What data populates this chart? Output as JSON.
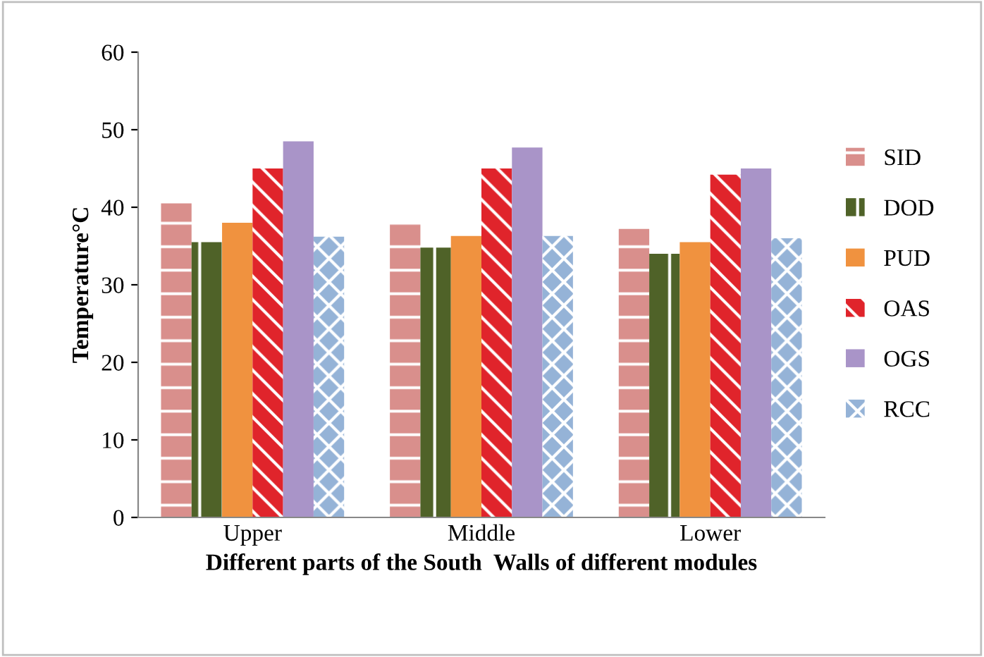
{
  "chart_data": {
    "type": "bar",
    "xlabel": "Different parts of the South  Walls of different modules",
    "ylabel": "Temperature°C",
    "categories": [
      "Upper",
      "Middle",
      "Lower"
    ],
    "series": [
      {
        "name": "SID",
        "color": "#d98f8c",
        "values": [
          40.5,
          38,
          37.2
        ]
      },
      {
        "name": "DOD",
        "color": "#4f6228",
        "values": [
          35.5,
          34.8,
          34
        ]
      },
      {
        "name": "PUD",
        "color": "#f0923f",
        "values": [
          38,
          36.3,
          35.5
        ]
      },
      {
        "name": "OAS",
        "color": "#e0242b",
        "values": [
          45,
          45,
          44.2
        ]
      },
      {
        "name": "OGS",
        "color": "#a994c8",
        "values": [
          48.5,
          47.7,
          45
        ]
      },
      {
        "name": "RCC",
        "color": "#95b3d7",
        "values": [
          36.2,
          36.3,
          36
        ]
      }
    ],
    "ylim": [
      0,
      60
    ],
    "yticks": [
      0,
      10,
      20,
      30,
      40,
      50,
      60
    ],
    "grid": false,
    "legend": "right"
  }
}
